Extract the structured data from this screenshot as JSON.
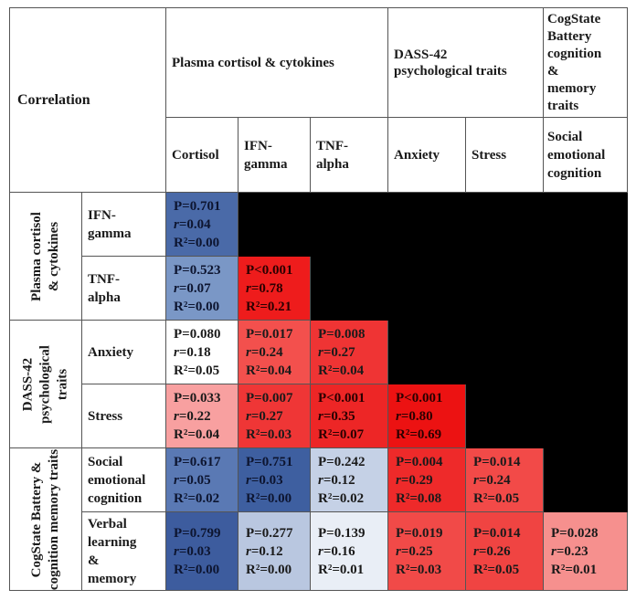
{
  "table": {
    "corner_label": "Correlation",
    "groups": {
      "plasma": "Plasma cortisol & cytokines",
      "dass_line1": "DASS-42",
      "dass_line2": "psychological traits",
      "cog_line1": "CogState",
      "cog_line2": "Battery",
      "cog_line3": "cognition",
      "cog_line4": "&",
      "cog_line5": "memory",
      "cog_line6": "traits"
    },
    "columns": {
      "cortisol": "Cortisol",
      "ifn_1": "IFN-",
      "ifn_2": "gamma",
      "tnf_1": "TNF-",
      "tnf_2": "alpha",
      "anxiety": "Anxiety",
      "stress": "Stress",
      "social_1": "Social",
      "social_2": "emotional",
      "social_3": "cognition"
    },
    "row_groups": {
      "plasma_1": "Plasma cortisol",
      "plasma_2": "& cytokines",
      "dass_1": "DASS-42",
      "dass_2": "psychological",
      "dass_3": "traits",
      "cog_1": "CogState Battery &",
      "cog_2": "cognition memory traits"
    },
    "rows": {
      "ifn_1": "IFN-",
      "ifn_2": "gamma",
      "tnf_1": "TNF-",
      "tnf_2": "alpha",
      "anxiety": "Anxiety",
      "stress": "Stress",
      "social_1": "Social",
      "social_2": "emotional",
      "social_3": "cognition",
      "verbal_1": "Verbal",
      "verbal_2": "learning",
      "verbal_3": "&",
      "verbal_4": "memory"
    },
    "cells": {
      "ifn_cortisol": {
        "p": "P=0.701",
        "r": "=0.04",
        "r2": "=0.00",
        "color": "#4a6aa8",
        "text_color": "#0d1530"
      },
      "tnf_cortisol": {
        "p": "P=0.523",
        "r": "=0.07",
        "r2": "=0.00",
        "color": "#7a97c6",
        "text_color": "#0d1530"
      },
      "tnf_ifn": {
        "p": "P<0.001",
        "r": "=0.78",
        "r2": "=0.21",
        "color": "#ee1c1c",
        "text_color": "#2a0000"
      },
      "anx_cortisol": {
        "p": "P=0.080",
        "r": "=0.18",
        "r2": "=0.05",
        "color": "#ffffff",
        "text_color": "#1a1a1a"
      },
      "anx_ifn": {
        "p": "P=0.017",
        "r": "=0.24",
        "r2": "=0.04",
        "color": "#f3504d",
        "text_color": "#1a1a1a"
      },
      "anx_tnf": {
        "p": "P=0.008",
        "r": "=0.27",
        "r2": "=0.04",
        "color": "#ef3434",
        "text_color": "#1a1a1a"
      },
      "str_cortisol": {
        "p": "P=0.033",
        "r": "=0.22",
        "r2": "=0.04",
        "color": "#f8a0a0",
        "text_color": "#1a1a1a"
      },
      "str_ifn": {
        "p": "P=0.007",
        "r": "=0.27",
        "r2": "=0.03",
        "color": "#ef3636",
        "text_color": "#1a1a1a"
      },
      "str_tnf": {
        "p": "P<0.001",
        "r": "=0.35",
        "r2": "=0.07",
        "color": "#ed2626",
        "text_color": "#2a0000"
      },
      "str_anx": {
        "p": "P<0.001",
        "r": "=0.80",
        "r2": "=0.69",
        "color": "#ec1212",
        "text_color": "#2a0000"
      },
      "soc_cortisol": {
        "p": "P=0.617",
        "r": "=0.05",
        "r2": "=0.02",
        "color": "#5a79b4",
        "text_color": "#0d1530"
      },
      "soc_ifn": {
        "p": "P=0.751",
        "r": "=0.03",
        "r2": "=0.00",
        "color": "#3e5fa0",
        "text_color": "#0d1530"
      },
      "soc_tnf": {
        "p": "P=0.242",
        "r": "=0.12",
        "r2": "=0.02",
        "color": "#c5d1e6",
        "text_color": "#1a1a1a"
      },
      "soc_anx": {
        "p": "P=0.004",
        "r": "=0.29",
        "r2": "=0.08",
        "color": "#ee2a2a",
        "text_color": "#1a1a1a"
      },
      "soc_str": {
        "p": "P=0.014",
        "r": "=0.24",
        "r2": "=0.05",
        "color": "#f24a48",
        "text_color": "#1a1a1a"
      },
      "verb_cortisol": {
        "p": "P=0.799",
        "r": "=0.03",
        "r2": "=0.00",
        "color": "#3d5c9e",
        "text_color": "#0d1530"
      },
      "verb_ifn": {
        "p": "P=0.277",
        "r": "=0.12",
        "r2": "=0.00",
        "color": "#b9c7e0",
        "text_color": "#1a1a1a"
      },
      "verb_tnf": {
        "p": "P=0.139",
        "r": "=0.16",
        "r2": "=0.01",
        "color": "#e9eef6",
        "text_color": "#1a1a1a"
      },
      "verb_anx": {
        "p": "P=0.019",
        "r": "=0.25",
        "r2": "=0.03",
        "color": "#f14a48",
        "text_color": "#1a1a1a"
      },
      "verb_str": {
        "p": "P=0.014",
        "r": "=0.26",
        "r2": "=0.05",
        "color": "#f04442",
        "text_color": "#1a1a1a"
      },
      "verb_soc": {
        "p": "P=0.028",
        "r": "=0.23",
        "r2": "=0.01",
        "color": "#f6908e",
        "text_color": "#1a1a1a"
      }
    },
    "r_symbol": "r",
    "r2_symbol": "R²"
  }
}
